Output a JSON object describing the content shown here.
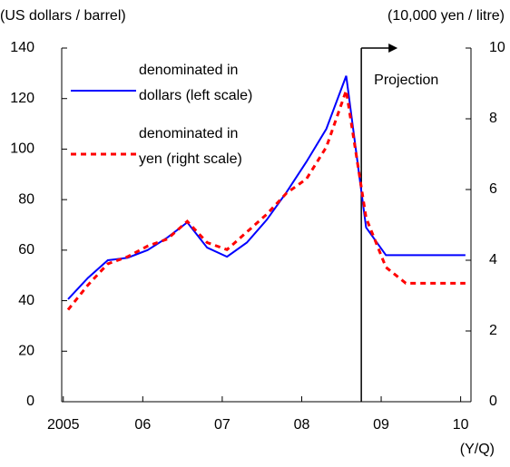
{
  "chart_data": {
    "type": "line",
    "y_label": "(US dollars / barrel)",
    "y2_label": "(10,000 yen / litre)",
    "x_label": "(Y/Q)",
    "x": [
      2005.06,
      2005.31,
      2005.56,
      2005.81,
      2006.06,
      2006.31,
      2006.56,
      2006.81,
      2007.06,
      2007.31,
      2007.56,
      2007.81,
      2008.06,
      2008.31,
      2008.56,
      2008.81,
      2009.06,
      2009.31,
      2009.56,
      2009.81,
      2010.06
    ],
    "series": [
      {
        "name": "denominated in\ndollars (left scale)",
        "color": "#0000ff",
        "dash": false,
        "values": [
          40.6,
          49,
          56,
          57,
          60,
          65,
          71,
          61,
          57.4,
          63,
          72,
          83,
          95,
          108,
          129,
          69,
          58,
          58,
          58,
          58,
          58
        ]
      },
      {
        "name": "denominated in\nyen (right scale)",
        "color": "#ff0000",
        "dash": true,
        "axis": "y2",
        "values": [
          2.6,
          3.3,
          3.9,
          4.1,
          4.4,
          4.6,
          5.1,
          4.5,
          4.3,
          4.8,
          5.3,
          5.9,
          6.3,
          7.2,
          8.8,
          5.2,
          3.8,
          3.35,
          3.35,
          3.35,
          3.35
        ]
      }
    ],
    "xlim": [
      2004.98,
      2010.13
    ],
    "xticks": [
      2005,
      {
        "value": 2006,
        "label": "06"
      },
      {
        "value": 2007,
        "label": "07"
      },
      {
        "value": 2008,
        "label": "08"
      },
      {
        "value": 2009,
        "label": "09"
      },
      {
        "value": 2010,
        "label": "10"
      }
    ],
    "ylim": [
      0,
      140
    ],
    "yticks": [
      0,
      20,
      40,
      60,
      80,
      100,
      120,
      140
    ],
    "y2lim": [
      0,
      10
    ],
    "y2ticks": [
      0,
      2,
      4,
      6,
      8,
      10
    ],
    "projection": {
      "label": "Projection",
      "x": 2008.75
    }
  }
}
